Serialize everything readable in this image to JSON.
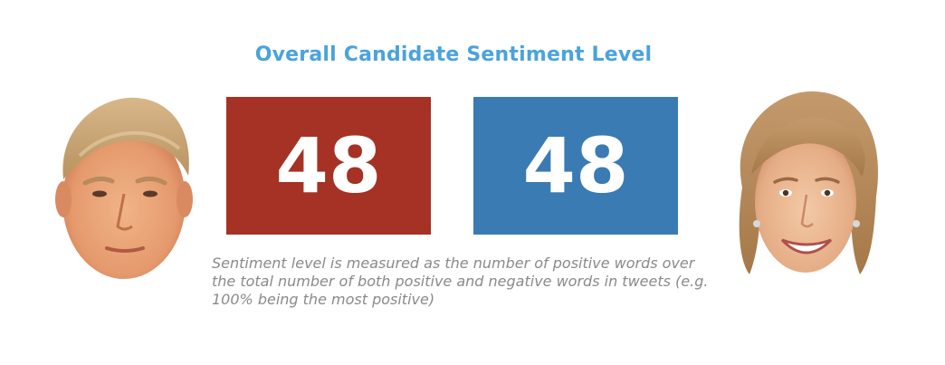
{
  "title": "Overall Candidate Sentiment Level",
  "candidates": [
    {
      "value": "48",
      "color": "#a53224"
    },
    {
      "value": "48",
      "color": "#3b7bb3"
    }
  ],
  "note": "Sentiment level is measured as the number of positive words over the total number of both positive and negative words in tweets (e.g. 100% being the most positive)"
}
